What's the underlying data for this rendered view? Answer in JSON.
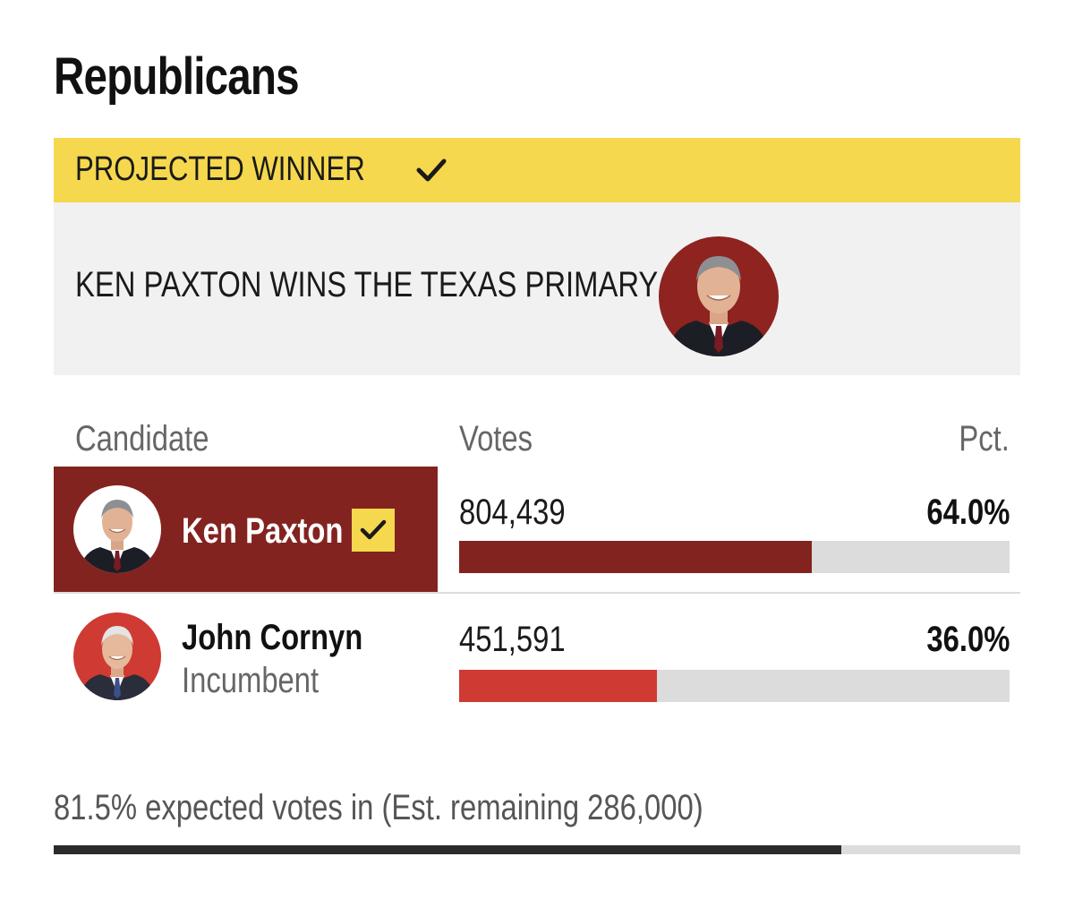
{
  "party_title": "Republicans",
  "banner": {
    "label": "PROJECTED WINNER"
  },
  "announcement": {
    "text": "KEN PAXTON WINS THE TEXAS PRIMARY"
  },
  "table": {
    "headers": {
      "candidate": "Candidate",
      "votes": "Votes",
      "pct": "Pct."
    },
    "rows": [
      {
        "name": "Ken Paxton",
        "subtitle": "",
        "votes": "804,439",
        "pct": "64.0%",
        "share": 0.64,
        "winner": true
      },
      {
        "name": "John Cornyn",
        "subtitle": "Incumbent",
        "votes": "451,591",
        "pct": "36.0%",
        "share": 0.36,
        "winner": false
      }
    ]
  },
  "footer": {
    "expected_text": "81.5% expected votes in (Est. remaining 286,000)",
    "expected_fraction": 0.815
  },
  "colors": {
    "banner_yellow": "#f5d84e",
    "winner_dark_red": "#832320",
    "runner_red": "#cf3a33",
    "track_gray": "#dcdcdc"
  },
  "icons": {
    "projected": "check-icon",
    "winner_mark": "check-icon"
  }
}
